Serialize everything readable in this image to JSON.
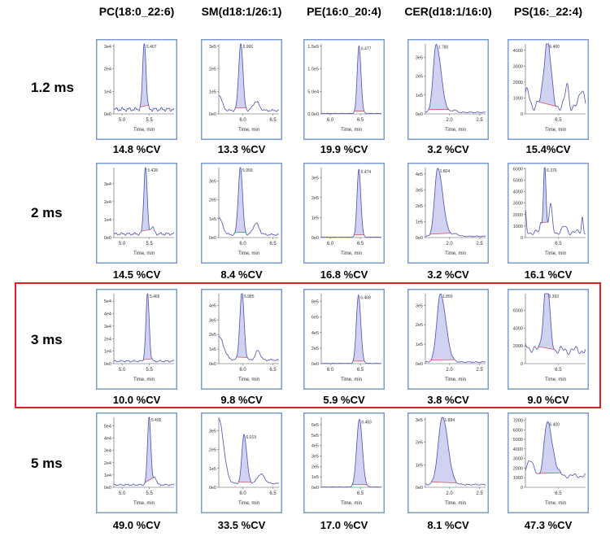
{
  "colors": {
    "frame": "#7a9cd0",
    "trace": "#4b4fb0",
    "fill": "#c9c9f0",
    "baseline": "#e05060",
    "highlight": "#e02020"
  },
  "chart_data": {
    "type": "line",
    "title": "",
    "columns": [
      "PC(18:0_22:6)",
      "SM(d18:1/26:1)",
      "PE(16:0_20:4)",
      "CER(d18:1/16:0)",
      "PS(16:_22:4)"
    ],
    "rows": [
      "1.2 ms",
      "2 ms",
      "3 ms",
      "5 ms"
    ],
    "highlighted_row": "3 ms",
    "xlabel": "Time, min",
    "panels": [
      [
        {
          "cv": "14.8 %CV",
          "peak_label": "5.407",
          "rt": 5.407,
          "height": 30000,
          "sigma": 0.03,
          "tail": 1,
          "base": 2000,
          "noise": 900,
          "xlim": [
            4.85,
            5.95
          ],
          "xticks": [
            "5.0",
            "5.5"
          ],
          "ymax": 31000,
          "yticks": [
            0,
            10000,
            20000,
            30000
          ],
          "ylabels": [
            "0e0",
            "1e4",
            "2e4",
            "3e4"
          ],
          "extras": []
        },
        {
          "cv": "13.3 %CV",
          "peak_label": "5.966",
          "rt": 5.966,
          "height": 300000,
          "sigma": 0.035,
          "tail": 1,
          "base": 15000,
          "noise": 5000,
          "xlim": [
            5.6,
            6.6
          ],
          "xticks": [
            "6.0",
            "6.5"
          ],
          "ymax": 310000,
          "yticks": [
            0,
            100000,
            200000,
            300000
          ],
          "ylabels": [
            "0e0",
            "1e5",
            "2e5",
            "3e5"
          ],
          "extras": [
            [
              5.6,
              70000,
              0.05
            ],
            [
              6.22,
              40000,
              0.05
            ]
          ]
        },
        {
          "cv": "19.9 %CV",
          "peak_label": "6.477",
          "rt": 6.477,
          "height": 150000,
          "sigma": 0.03,
          "tail": 1.1,
          "base": 1000,
          "noise": 600,
          "xlim": [
            5.85,
            6.85
          ],
          "xticks": [
            "6.0",
            "6.5"
          ],
          "ymax": 155000,
          "yticks": [
            0,
            50000,
            100000,
            150000
          ],
          "ylabels": [
            "0.0e0",
            "5.0e4",
            "1.0e5",
            "1.5e5"
          ],
          "extras": []
        },
        {
          "cv": "3.2 %CV",
          "peak_label": "1.780",
          "rt": 1.78,
          "height": 360000,
          "sigma": 0.05,
          "tail": 1.6,
          "base": 8000,
          "noise": 3000,
          "xlim": [
            1.6,
            2.6
          ],
          "xticks": [
            "2.0",
            "2.5"
          ],
          "ymax": 370000,
          "yticks": [
            0,
            100000,
            200000,
            300000
          ],
          "ylabels": [
            "0e0",
            "1e5",
            "2e5",
            "3e5"
          ],
          "extras": [
            [
              2.08,
              12000,
              0.04
            ]
          ]
        },
        {
          "cv": "15.4%CV",
          "peak_label": "6.400",
          "rt": 6.4,
          "height": 4300,
          "sigma": 0.03,
          "tail": 1,
          "base": 500,
          "noise": 350,
          "xlim": [
            6.2,
            6.75
          ],
          "xticks": [
            "6.5"
          ],
          "ymax": 4400,
          "yticks": [
            0,
            1000,
            2000,
            3000,
            4000
          ],
          "ylabels": [
            "0",
            "1000",
            "2000",
            "3000",
            "4000"
          ],
          "extras": [
            [
              6.22,
              900,
              0.02
            ],
            [
              6.58,
              1300,
              0.015
            ],
            [
              6.72,
              1100,
              0.02
            ]
          ]
        }
      ],
      [
        {
          "cv": "14.5 %CV",
          "peak_label": "5.428",
          "rt": 5.428,
          "height": 38000,
          "sigma": 0.03,
          "tail": 1,
          "base": 2000,
          "noise": 800,
          "xlim": [
            4.85,
            5.95
          ],
          "xticks": [
            "5.0",
            "5.5"
          ],
          "ymax": 39000,
          "yticks": [
            0,
            10000,
            20000,
            30000
          ],
          "ylabels": [
            "0e0",
            "1e4",
            "2e4",
            "3e4"
          ],
          "extras": [
            [
              5.55,
              4000,
              0.03
            ]
          ]
        },
        {
          "cv": "8.4 %CV",
          "peak_label": "5.959",
          "rt": 5.959,
          "height": 360000,
          "sigma": 0.035,
          "tail": 1,
          "base": 15000,
          "noise": 5000,
          "xlim": [
            5.6,
            6.6
          ],
          "xticks": [
            "6.0",
            "6.5"
          ],
          "ymax": 370000,
          "yticks": [
            0,
            100000,
            200000,
            300000
          ],
          "ylabels": [
            "0e0",
            "1e5",
            "2e5",
            "3e5"
          ],
          "extras": [
            [
              5.6,
              90000,
              0.06
            ],
            [
              6.22,
              60000,
              0.05
            ]
          ]
        },
        {
          "cv": "16.8 %CV",
          "peak_label": "6.474",
          "rt": 6.474,
          "height": 340000,
          "sigma": 0.03,
          "tail": 1.1,
          "base": 2000,
          "noise": 1000,
          "xlim": [
            5.85,
            6.85
          ],
          "xticks": [
            "6.0",
            "6.5"
          ],
          "ymax": 350000,
          "yticks": [
            0,
            100000,
            200000,
            300000
          ],
          "ylabels": [
            "0e0",
            "1e5",
            "2e5",
            "3e5"
          ],
          "extras": []
        },
        {
          "cv": "3.2 %CV",
          "peak_label": "1.804",
          "rt": 1.804,
          "height": 430000,
          "sigma": 0.05,
          "tail": 1.7,
          "base": 8000,
          "noise": 3000,
          "xlim": [
            1.6,
            2.6
          ],
          "xticks": [
            "2.0",
            "2.5"
          ],
          "ymax": 440000,
          "yticks": [
            0,
            100000,
            200000,
            300000,
            400000
          ],
          "ylabels": [
            "0e0",
            "1e5",
            "2e5",
            "3e5",
            "4e5"
          ],
          "extras": [
            [
              2.1,
              15000,
              0.05
            ]
          ]
        },
        {
          "cv": "16.1 %CV",
          "peak_label": "6.376",
          "rt": 6.376,
          "height": 6000,
          "sigma": 0.012,
          "tail": 1,
          "base": 450,
          "noise": 250,
          "xlim": [
            6.2,
            6.75
          ],
          "xticks": [
            "6.5"
          ],
          "ymax": 6100,
          "yticks": [
            0,
            1000,
            2000,
            3000,
            4000,
            5000,
            6000
          ],
          "ylabels": [
            "0",
            "1000",
            "2000",
            "3000",
            "4000",
            "5000",
            "6000"
          ],
          "extras": [
            [
              6.43,
              2300,
              0.015
            ],
            [
              6.2,
              1700,
              0.008
            ],
            [
              6.34,
              700,
              0.008
            ],
            [
              6.56,
              500,
              0.02
            ],
            [
              6.72,
              1400,
              0.008
            ]
          ]
        }
      ],
      [
        {
          "cv": "10.0 %CV",
          "peak_label": "5.466",
          "rt": 5.466,
          "height": 54000,
          "sigma": 0.03,
          "tail": 1,
          "base": 2000,
          "noise": 800,
          "xlim": [
            4.85,
            5.95
          ],
          "xticks": [
            "5.0",
            "5.5"
          ],
          "ymax": 56000,
          "yticks": [
            0,
            10000,
            20000,
            30000,
            40000,
            50000
          ],
          "ylabels": [
            "0e0",
            "1e4",
            "2e4",
            "3e4",
            "4e4",
            "5e4"
          ],
          "extras": []
        },
        {
          "cv": "9.8 %CV",
          "peak_label": "5.985",
          "rt": 5.985,
          "height": 470000,
          "sigma": 0.035,
          "tail": 1,
          "base": 25000,
          "noise": 6000,
          "xlim": [
            5.6,
            6.6
          ],
          "xticks": [
            "6.0",
            "6.5"
          ],
          "ymax": 480000,
          "yticks": [
            0,
            100000,
            200000,
            300000,
            400000
          ],
          "ylabels": [
            "0e0",
            "1e5",
            "2e5",
            "3e5",
            "4e5"
          ],
          "extras": [
            [
              5.6,
              160000,
              0.08
            ],
            [
              6.25,
              65000,
              0.04
            ]
          ]
        },
        {
          "cv": "5.9 %CV",
          "peak_label": "6.468",
          "rt": 6.468,
          "height": 880000,
          "sigma": 0.035,
          "tail": 1.1,
          "base": 3000,
          "noise": 2000,
          "xlim": [
            5.85,
            6.85
          ],
          "xticks": [
            "6.0",
            "6.5"
          ],
          "ymax": 900000,
          "yticks": [
            0,
            200000,
            400000,
            600000,
            800000
          ],
          "ylabels": [
            "0e0",
            "2e5",
            "4e5",
            "6e5",
            "8e5"
          ],
          "extras": []
        },
        {
          "cv": "3.8 %CV",
          "peak_label": "1.850",
          "rt": 1.85,
          "height": 350000,
          "sigma": 0.06,
          "tail": 1.5,
          "base": 8000,
          "noise": 3000,
          "xlim": [
            1.6,
            2.6
          ],
          "xticks": [
            "2.0",
            "2.5"
          ],
          "ymax": 360000,
          "yticks": [
            0,
            100000,
            200000,
            300000
          ],
          "ylabels": [
            "0e0",
            "1e5",
            "2e5",
            "3e5"
          ],
          "extras": []
        },
        {
          "cv": "9.0 %CV",
          "peak_label": "6.393",
          "rt": 6.393,
          "height": 7700,
          "sigma": 0.028,
          "tail": 1,
          "base": 1500,
          "noise": 500,
          "xlim": [
            6.2,
            6.75
          ],
          "xticks": [
            "6.5"
          ],
          "ymax": 7900,
          "yticks": [
            0,
            2000,
            4000,
            6000
          ],
          "ylabels": [
            "0",
            "2000",
            "4000",
            "6000"
          ],
          "extras": [
            [
              6.2,
              700,
              0.03
            ]
          ]
        }
      ],
      [
        {
          "cv": "49.0 %CV",
          "peak_label": "5.495",
          "rt": 5.495,
          "height": 56000,
          "sigma": 0.03,
          "tail": 1,
          "base": 2000,
          "noise": 700,
          "xlim": [
            4.85,
            5.95
          ],
          "xticks": [
            "5.0",
            "5.5"
          ],
          "ymax": 57000,
          "yticks": [
            0,
            10000,
            20000,
            30000,
            40000,
            50000
          ],
          "ylabels": [
            "0e0",
            "1e4",
            "2e4",
            "3e4",
            "4e4",
            "5e4"
          ],
          "extras": [
            [
              5.6,
              6000,
              0.03
            ]
          ]
        },
        {
          "cv": "33.5 %CV",
          "peak_label": "6.019",
          "rt": 6.019,
          "height": 260000,
          "sigma": 0.035,
          "tail": 1.3,
          "base": 20000,
          "noise": 4000,
          "xlim": [
            5.6,
            6.6
          ],
          "xticks": [
            "6.0",
            "6.5"
          ],
          "ymax": 370000,
          "yticks": [
            0,
            100000,
            200000,
            300000
          ],
          "ylabels": [
            "0e0",
            "1e5",
            "2e5",
            "3e5"
          ],
          "extras": [
            [
              5.6,
              340000,
              0.08
            ],
            [
              6.3,
              50000,
              0.06
            ]
          ]
        },
        {
          "cv": "17.0 %CV",
          "peak_label": "6.483",
          "rt": 6.483,
          "height": 650000,
          "sigma": 0.045,
          "tail": 1.1,
          "base": 3000,
          "noise": 2000,
          "xlim": [
            5.85,
            6.85
          ],
          "xticks": [
            "6.5"
          ],
          "ymax": 670000,
          "yticks": [
            0,
            100000,
            200000,
            300000,
            400000,
            500000,
            600000
          ],
          "ylabels": [
            "0e0",
            "1e5",
            "2e5",
            "3e5",
            "4e5",
            "5e5",
            "6e5"
          ],
          "extras": []
        },
        {
          "cv": "8.1 %CV",
          "peak_label": "1.884",
          "rt": 1.884,
          "height": 300000,
          "sigma": 0.07,
          "tail": 1.3,
          "base": 12000,
          "noise": 3000,
          "xlim": [
            1.6,
            2.6
          ],
          "xticks": [
            "2.0",
            "2.5"
          ],
          "ymax": 310000,
          "yticks": [
            0,
            100000,
            200000,
            300000
          ],
          "ylabels": [
            "0e0",
            "1e5",
            "2e5",
            "3e5"
          ],
          "extras": []
        },
        {
          "cv": "47.3 %CV",
          "peak_label": "6.400",
          "rt": 6.4,
          "height": 5500,
          "sigma": 0.03,
          "tail": 1.6,
          "base": 1200,
          "noise": 250,
          "xlim": [
            6.2,
            6.75
          ],
          "xticks": [
            "6.5"
          ],
          "ymax": 7300,
          "yticks": [
            0,
            1000,
            2000,
            3000,
            4000,
            5000,
            6000,
            7000
          ],
          "ylabels": [
            "0",
            "1000",
            "2000",
            "3000",
            "4000",
            "5000",
            "6000",
            "7000"
          ],
          "extras": [
            [
              6.24,
              1700,
              0.03
            ]
          ]
        }
      ]
    ]
  }
}
